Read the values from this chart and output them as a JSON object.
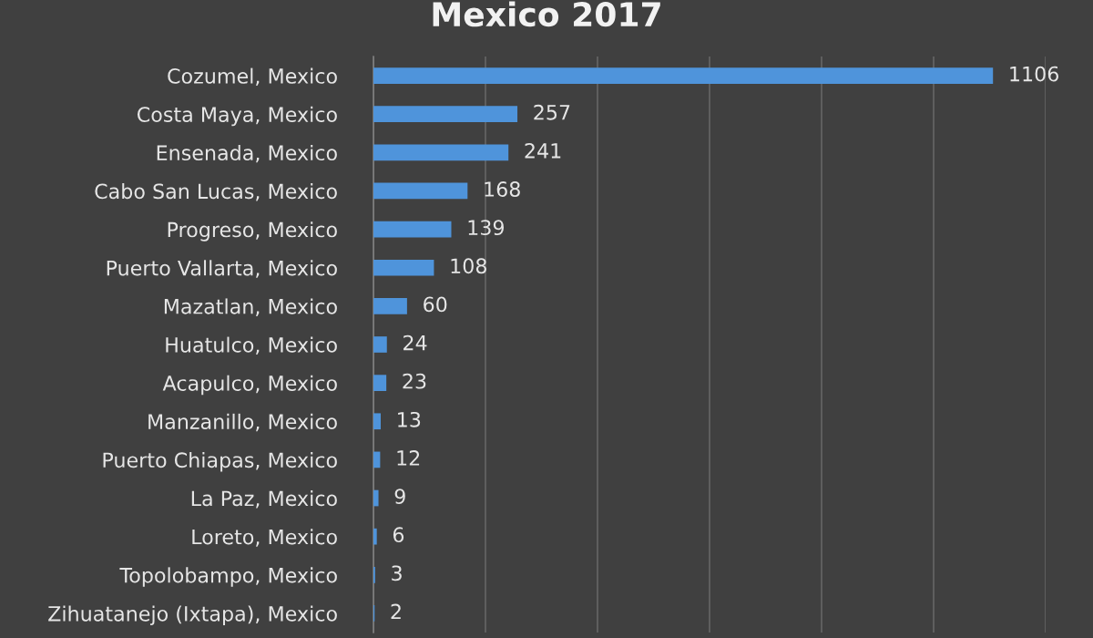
{
  "chart_data": {
    "type": "bar",
    "orientation": "horizontal",
    "title": "Mexico 2017",
    "categories": [
      "Cozumel, Mexico",
      "Costa Maya, Mexico",
      "Ensenada, Mexico",
      "Cabo San Lucas, Mexico",
      "Progreso, Mexico",
      "Puerto Vallarta, Mexico",
      "Mazatlan, Mexico",
      "Huatulco, Mexico",
      "Acapulco, Mexico",
      "Manzanillo, Mexico",
      "Puerto Chiapas, Mexico",
      "La Paz, Mexico",
      "Loreto, Mexico",
      "Topolobampo, Mexico",
      "Zihuatanejo (Ixtapa), Mexico"
    ],
    "values": [
      1106,
      257,
      241,
      168,
      139,
      108,
      60,
      24,
      23,
      13,
      12,
      9,
      6,
      3,
      2
    ],
    "color": "#4f94db",
    "xlim": [
      0,
      1200
    ],
    "xticks": [
      {
        "value": 0,
        "label": null
      },
      {
        "value": 200,
        "label": null
      },
      {
        "value": 400,
        "label": null
      },
      {
        "value": 600,
        "label": null
      },
      {
        "value": 800,
        "label": null
      },
      {
        "value": 1000,
        "label": null
      },
      {
        "value": 1200,
        "label": null
      }
    ],
    "grid": "x",
    "tick_labels": "y",
    "data_labels": true
  }
}
